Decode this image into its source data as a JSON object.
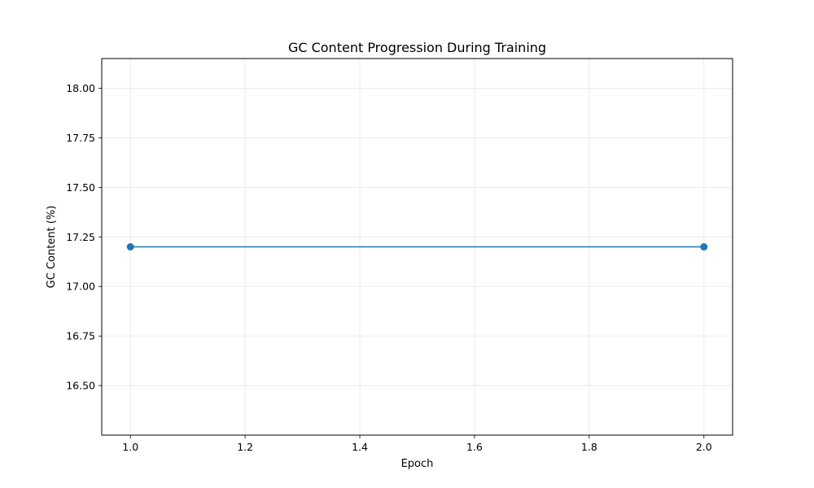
{
  "chart_data": {
    "type": "line",
    "title": "GC Content Progression During Training",
    "xlabel": "Epoch",
    "ylabel": "GC Content (%)",
    "xlim": [
      0.95,
      2.05
    ],
    "ylim": [
      16.25,
      18.15
    ],
    "xticks": [
      "1.0",
      "1.2",
      "1.4",
      "1.6",
      "1.8",
      "2.0"
    ],
    "yticks": [
      "16.50",
      "16.75",
      "17.00",
      "17.25",
      "17.50",
      "17.75",
      "18.00"
    ],
    "grid": true,
    "series": [
      {
        "x": [
          1.0,
          2.0
        ],
        "y": [
          17.2,
          17.2
        ],
        "color": "#1f77b4",
        "marker": "circle"
      }
    ]
  }
}
